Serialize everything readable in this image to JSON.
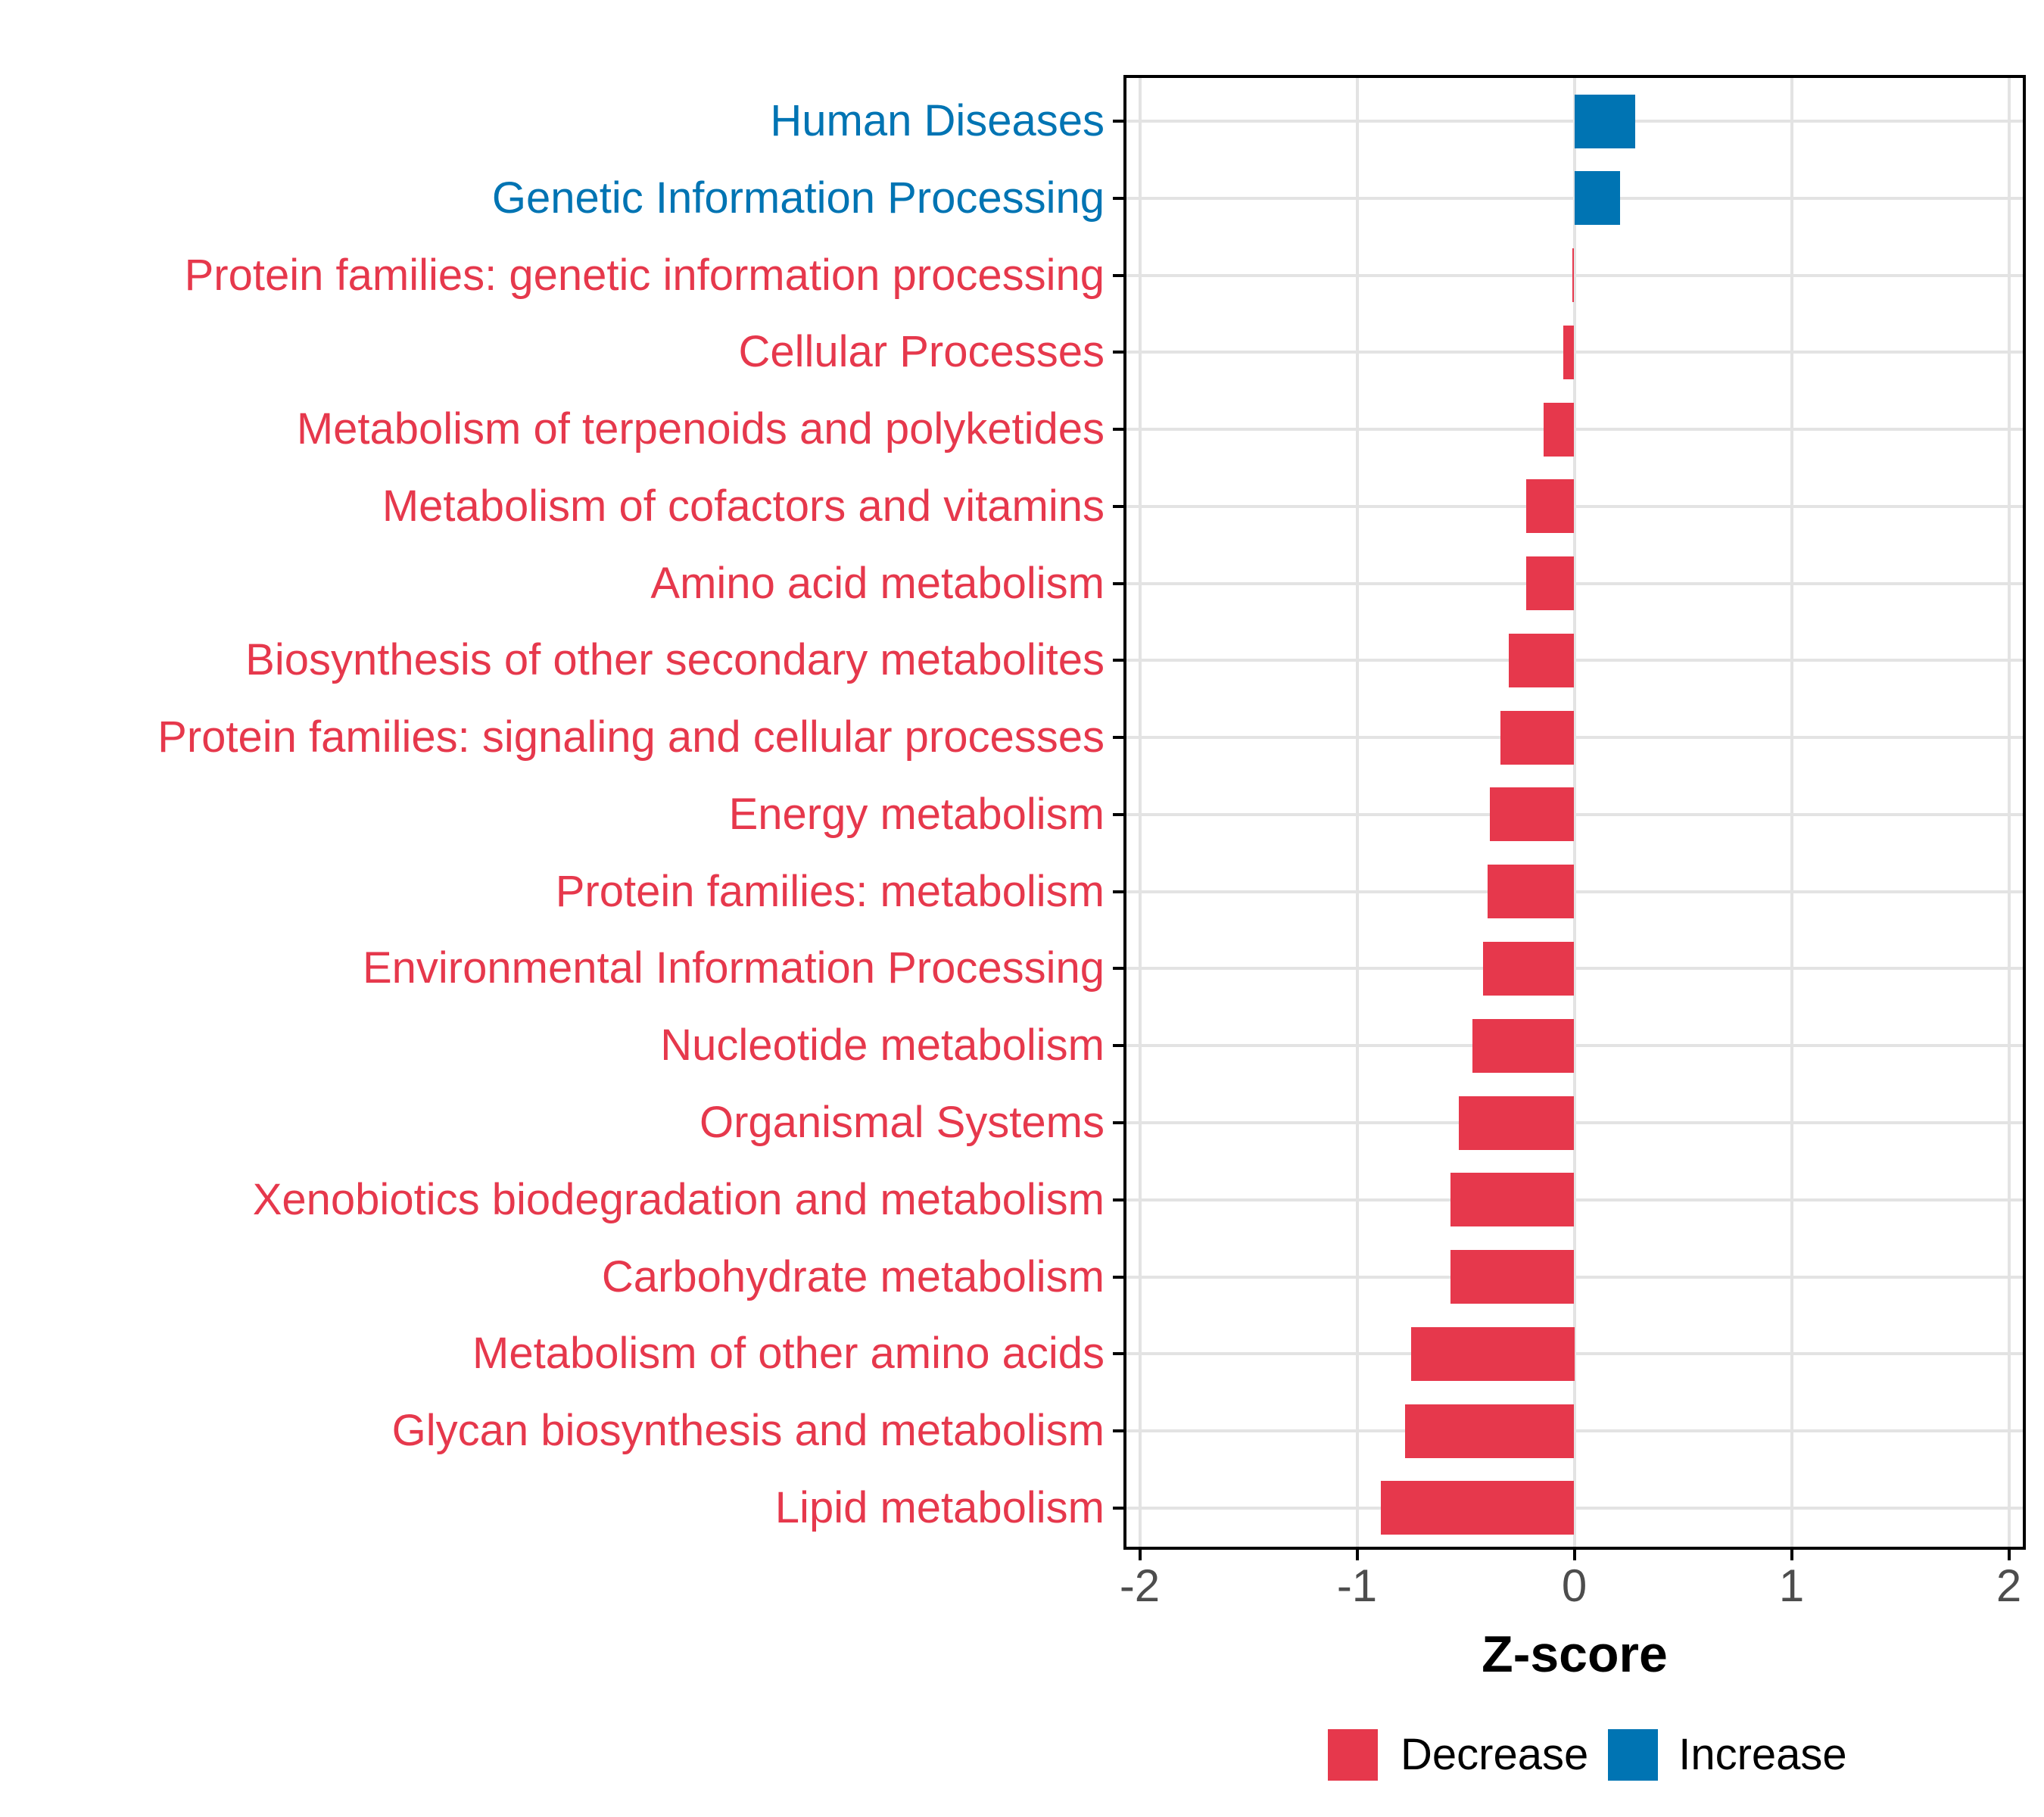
{
  "chart_data": {
    "type": "bar",
    "orientation": "horizontal",
    "title": "",
    "xlabel": "Z-score",
    "ylabel": "",
    "xlim": [
      -2.2,
      2.2
    ],
    "x_ticks": [
      -2,
      -1,
      0,
      1,
      2
    ],
    "x_tick_labels": [
      "-2",
      "-1",
      "0",
      "1",
      "2"
    ],
    "grid": true,
    "legend_position": "bottom-right",
    "categories": [
      "Human Diseases",
      "Genetic Information Processing",
      "Protein families: genetic information processing",
      "Cellular Processes",
      "Metabolism of terpenoids and polyketides",
      "Metabolism of cofactors and vitamins",
      "Amino acid metabolism",
      "Biosynthesis of other secondary metabolites",
      "Protein families: signaling and cellular processes",
      "Energy metabolism",
      "Protein families: metabolism",
      "Environmental Information Processing",
      "Nucleotide metabolism",
      "Organismal Systems",
      "Xenobiotics biodegradation and metabolism",
      "Carbohydrate metabolism",
      "Metabolism of other amino acids",
      "Glycan biosynthesis and metabolism",
      "Lipid metabolism"
    ],
    "values": [
      0.28,
      0.21,
      -0.01,
      -0.05,
      -0.14,
      -0.22,
      -0.22,
      -0.3,
      -0.34,
      -0.39,
      -0.4,
      -0.42,
      -0.47,
      -0.53,
      -0.57,
      -0.57,
      -0.75,
      -0.78,
      -0.89
    ],
    "directions": [
      "increase",
      "increase",
      "decrease",
      "decrease",
      "decrease",
      "decrease",
      "decrease",
      "decrease",
      "decrease",
      "decrease",
      "decrease",
      "decrease",
      "decrease",
      "decrease",
      "decrease",
      "decrease",
      "decrease",
      "decrease",
      "decrease"
    ],
    "legend": [
      {
        "label": "Decrease",
        "key": "decrease"
      },
      {
        "label": "Increase",
        "key": "increase"
      }
    ]
  },
  "colors": {
    "decrease": "#E6384C",
    "increase": "#0074B3",
    "axis_tick_text": "#4D4D4D",
    "grid": "#E3E3E3",
    "panel_border": "#000000",
    "background": "#FFFFFF"
  }
}
